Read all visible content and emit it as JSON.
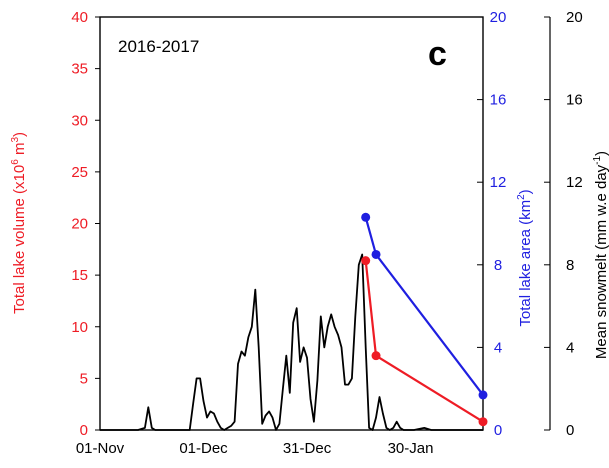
{
  "chart_data": {
    "type": "line",
    "title": "2016-2017",
    "panel_label": "c",
    "x": {
      "type": "date",
      "range": [
        "2016-11-01",
        "2017-02-20"
      ],
      "ticks": [
        {
          "value": "2016-11-01",
          "label": "01-Nov"
        },
        {
          "value": "2016-12-01",
          "label": "01-Dec"
        },
        {
          "value": "2016-12-31",
          "label": "31-Dec"
        },
        {
          "value": "2017-01-30",
          "label": "30-Jan"
        }
      ]
    },
    "axes": {
      "volume": {
        "label_main": "Total lake volume (x10",
        "label_sup": "6",
        "label_mid": " m",
        "label_sup2": "3",
        "label_end": ")",
        "color": "#ee1c25",
        "ylim": [
          0,
          40
        ],
        "ticks": [
          0,
          5,
          10,
          15,
          20,
          25,
          30,
          35,
          40
        ]
      },
      "area": {
        "label_main": "Total  lake area (km",
        "label_sup": "2",
        "label_end": ")",
        "color": "#1f1fe0",
        "ylim": [
          0,
          20
        ],
        "ticks": [
          0,
          4,
          8,
          12,
          16,
          20
        ]
      },
      "snowmelt": {
        "label_main": "Mean snowmelt (mm w.e day",
        "label_sup": "-1",
        "label_end": ")",
        "color": "#000000",
        "ylim": [
          0,
          20
        ],
        "ticks": [
          0,
          4,
          8,
          12,
          16,
          20
        ]
      }
    },
    "series": [
      {
        "axis": "snowmelt",
        "color": "#000000",
        "marker": false,
        "points": [
          [
            "2016-11-01",
            0
          ],
          [
            "2016-11-03",
            0
          ],
          [
            "2016-11-06",
            0
          ],
          [
            "2016-11-09",
            0
          ],
          [
            "2016-11-12",
            0
          ],
          [
            "2016-11-14",
            0.1
          ],
          [
            "2016-11-15",
            1.1
          ],
          [
            "2016-11-16",
            0.1
          ],
          [
            "2016-11-17",
            0
          ],
          [
            "2016-11-20",
            0
          ],
          [
            "2016-11-24",
            0
          ],
          [
            "2016-11-27",
            0
          ],
          [
            "2016-11-28",
            1.3
          ],
          [
            "2016-11-29",
            2.5
          ],
          [
            "2016-11-30",
            2.5
          ],
          [
            "2016-12-01",
            1.4
          ],
          [
            "2016-12-02",
            0.6
          ],
          [
            "2016-12-03",
            0.9
          ],
          [
            "2016-12-04",
            0.8
          ],
          [
            "2016-12-05",
            0.4
          ],
          [
            "2016-12-06",
            0.1
          ],
          [
            "2016-12-07",
            0
          ],
          [
            "2016-12-08",
            0.1
          ],
          [
            "2016-12-09",
            0.2
          ],
          [
            "2016-12-10",
            0.4
          ],
          [
            "2016-12-11",
            3.2
          ],
          [
            "2016-12-12",
            3.8
          ],
          [
            "2016-12-13",
            3.6
          ],
          [
            "2016-12-14",
            4.5
          ],
          [
            "2016-12-15",
            5.0
          ],
          [
            "2016-12-16",
            6.8
          ],
          [
            "2016-12-17",
            4.0
          ],
          [
            "2016-12-18",
            0.3
          ],
          [
            "2016-12-19",
            0.7
          ],
          [
            "2016-12-20",
            0.9
          ],
          [
            "2016-12-21",
            0.6
          ],
          [
            "2016-12-22",
            0
          ],
          [
            "2016-12-23",
            0.3
          ],
          [
            "2016-12-24",
            2.0
          ],
          [
            "2016-12-25",
            3.6
          ],
          [
            "2016-12-26",
            1.8
          ],
          [
            "2016-12-27",
            5.2
          ],
          [
            "2016-12-28",
            5.9
          ],
          [
            "2016-12-29",
            3.3
          ],
          [
            "2016-12-30",
            4.0
          ],
          [
            "2016-12-31",
            3.5
          ],
          [
            "2017-01-01",
            1.5
          ],
          [
            "2017-01-02",
            0.4
          ],
          [
            "2017-01-03",
            2.4
          ],
          [
            "2017-01-04",
            5.5
          ],
          [
            "2017-01-05",
            4.0
          ],
          [
            "2017-01-06",
            5.0
          ],
          [
            "2017-01-07",
            5.6
          ],
          [
            "2017-01-08",
            5.0
          ],
          [
            "2017-01-09",
            4.6
          ],
          [
            "2017-01-10",
            4.0
          ],
          [
            "2017-01-11",
            2.2
          ],
          [
            "2017-01-12",
            2.2
          ],
          [
            "2017-01-13",
            2.5
          ],
          [
            "2017-01-14",
            5.5
          ],
          [
            "2017-01-15",
            8.0
          ],
          [
            "2017-01-16",
            8.5
          ],
          [
            "2017-01-17",
            4.0
          ],
          [
            "2017-01-18",
            0.1
          ],
          [
            "2017-01-19",
            0
          ],
          [
            "2017-01-20",
            0.6
          ],
          [
            "2017-01-21",
            1.6
          ],
          [
            "2017-01-22",
            0.8
          ],
          [
            "2017-01-23",
            0.1
          ],
          [
            "2017-01-24",
            0
          ],
          [
            "2017-01-25",
            0.1
          ],
          [
            "2017-01-26",
            0.4
          ],
          [
            "2017-01-27",
            0.1
          ],
          [
            "2017-01-28",
            0
          ],
          [
            "2017-01-31",
            0
          ],
          [
            "2017-02-03",
            0.1
          ],
          [
            "2017-02-05",
            0
          ],
          [
            "2017-02-08",
            0
          ],
          [
            "2017-02-11",
            0
          ],
          [
            "2017-02-14",
            0
          ],
          [
            "2017-02-17",
            0
          ],
          [
            "2017-02-20",
            0
          ]
        ]
      },
      {
        "axis": "area",
        "color": "#1f1fe0",
        "marker": true,
        "points": [
          [
            "2017-01-17",
            10.3
          ],
          [
            "2017-01-20",
            8.5
          ],
          [
            "2017-02-20",
            1.7
          ]
        ]
      },
      {
        "axis": "volume",
        "color": "#ee1c25",
        "marker": true,
        "points": [
          [
            "2017-01-17",
            16.4
          ],
          [
            "2017-01-20",
            7.2
          ],
          [
            "2017-02-20",
            0.8
          ]
        ]
      }
    ]
  }
}
